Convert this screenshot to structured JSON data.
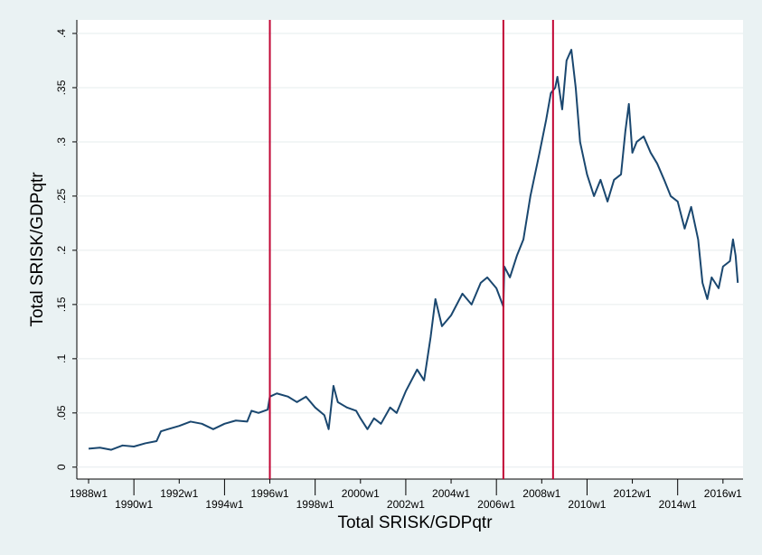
{
  "chart_data": {
    "type": "line",
    "x_label": "Total SRISK/GDPqtr",
    "y_label": "Total SRISK/GDPqtr",
    "x": [
      1456,
      1482,
      1508,
      1534,
      1560,
      1586,
      1612,
      1622,
      1638,
      1664,
      1690,
      1716,
      1742,
      1768,
      1794,
      1820,
      1830,
      1846,
      1867,
      1872,
      1888,
      1914,
      1934,
      1955,
      1976,
      1997,
      2007,
      2018,
      2028,
      2049,
      2070,
      2080,
      2096,
      2111,
      2127,
      2148,
      2163,
      2184,
      2210,
      2226,
      2241,
      2252,
      2267,
      2288,
      2314,
      2335,
      2356,
      2371,
      2392,
      2408,
      2410,
      2423,
      2439,
      2454,
      2470,
      2491,
      2506,
      2517,
      2527,
      2532,
      2543,
      2553,
      2564,
      2574,
      2584,
      2600,
      2616,
      2631,
      2647,
      2662,
      2678,
      2688,
      2696,
      2704,
      2714,
      2730,
      2746,
      2761,
      2777,
      2792,
      2808,
      2824,
      2839,
      2855,
      2865,
      2876,
      2886,
      2902,
      2912,
      2928,
      2935,
      2941,
      2946
    ],
    "series": [
      {
        "color": "#1a476f",
        "values": [
          0.017,
          0.018,
          0.016,
          0.02,
          0.019,
          0.022,
          0.024,
          0.033,
          0.035,
          0.038,
          0.042,
          0.04,
          0.035,
          0.04,
          0.043,
          0.042,
          0.052,
          0.05,
          0.053,
          0.065,
          0.068,
          0.065,
          0.06,
          0.065,
          0.055,
          0.048,
          0.035,
          0.075,
          0.06,
          0.055,
          0.052,
          0.045,
          0.035,
          0.045,
          0.04,
          0.055,
          0.05,
          0.07,
          0.09,
          0.08,
          0.12,
          0.155,
          0.13,
          0.14,
          0.16,
          0.15,
          0.17,
          0.175,
          0.165,
          0.148,
          0.185,
          0.175,
          0.195,
          0.21,
          0.25,
          0.29,
          0.32,
          0.345,
          0.35,
          0.36,
          0.33,
          0.375,
          0.385,
          0.35,
          0.3,
          0.27,
          0.25,
          0.265,
          0.245,
          0.265,
          0.27,
          0.31,
          0.335,
          0.29,
          0.3,
          0.305,
          0.29,
          0.28,
          0.265,
          0.25,
          0.245,
          0.22,
          0.24,
          0.21,
          0.17,
          0.155,
          0.175,
          0.165,
          0.185,
          0.19,
          0.21,
          0.195,
          0.17
        ]
      }
    ],
    "vlines": [
      1872,
      2408,
      2522
    ],
    "vline_color": "#c10534",
    "xlim": [
      1429,
      2958
    ],
    "ylim": [
      -0.011,
      0.4125
    ],
    "xticks": [
      {
        "value": 1456,
        "label": "1988w1"
      },
      {
        "value": 1560,
        "label": "1990w1"
      },
      {
        "value": 1664,
        "label": "1992w1"
      },
      {
        "value": 1768,
        "label": "1994w1"
      },
      {
        "value": 1872,
        "label": "1996w1"
      },
      {
        "value": 1976,
        "label": "1998w1"
      },
      {
        "value": 2080,
        "label": "2000w1"
      },
      {
        "value": 2184,
        "label": "2002w1"
      },
      {
        "value": 2288,
        "label": "2004w1"
      },
      {
        "value": 2392,
        "label": "2006w1"
      },
      {
        "value": 2496,
        "label": "2008w1"
      },
      {
        "value": 2600,
        "label": "2010w1"
      },
      {
        "value": 2704,
        "label": "2012w1"
      },
      {
        "value": 2808,
        "label": "2014w1"
      },
      {
        "value": 2912,
        "label": "2016w1"
      }
    ],
    "yticks": [
      0,
      {
        "value": 0.05,
        "label": ".05"
      },
      {
        "value": 0.1,
        "label": ".1"
      },
      {
        "value": 0.15,
        "label": ".15"
      },
      {
        "value": 0.2,
        "label": ".2"
      },
      {
        "value": 0.25,
        "label": ".25"
      },
      {
        "value": 0.3,
        "label": ".3"
      },
      {
        "value": 0.35,
        "label": ".35"
      },
      {
        "value": 0.4,
        "label": ".4"
      }
    ],
    "grid": true
  }
}
